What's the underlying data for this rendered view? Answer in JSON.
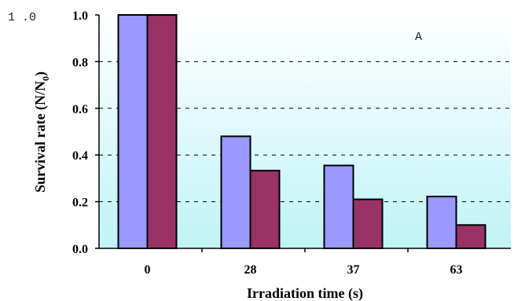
{
  "chart_data": {
    "type": "bar",
    "panel_label": "A",
    "stray_label": "1 .0",
    "categories": [
      "0",
      "28",
      "37",
      "63"
    ],
    "series": [
      {
        "values": [
          1.0,
          0.48,
          0.355,
          0.222
        ],
        "color": "#9999ff"
      },
      {
        "values": [
          1.0,
          0.333,
          0.21,
          0.1
        ],
        "color": "#993366"
      }
    ],
    "xlabel": "Irradiation time (s)",
    "ylabel": {
      "main": "Survival rate (N/N",
      "sub": "0",
      "end": ")"
    },
    "ylim": [
      0,
      1.0
    ],
    "yticks": [
      0.0,
      0.2,
      0.4,
      0.6,
      0.8,
      1.0
    ],
    "ytick_labels": [
      "0.0",
      "0.2",
      "0.4",
      "0.6",
      "0.8",
      "1.0"
    ],
    "grid": "dashed horizontal",
    "background": {
      "top": "#ffffff",
      "bottom": "#bff3f7"
    }
  }
}
